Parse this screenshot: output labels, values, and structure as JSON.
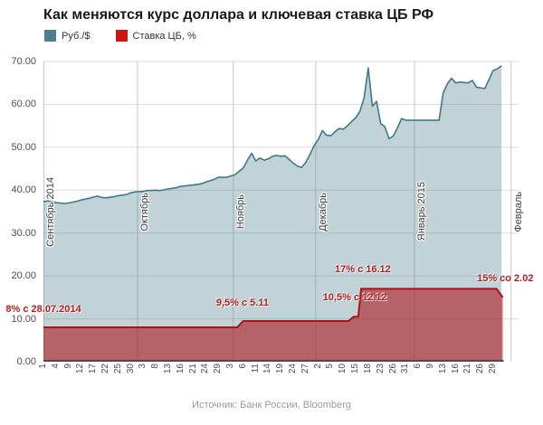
{
  "title": "Как меняются курс доллара и ключевая ставка ЦБ РФ",
  "legend": [
    {
      "label": "Руб./$",
      "color": "#4e7f8c"
    },
    {
      "label": "Ставка ЦБ, %",
      "color": "#cf1414"
    }
  ],
  "source": "Источник: Банк России, Bloomberg",
  "chart_data": {
    "type": "area",
    "title": "Как меняются курс доллара и ключевая ставка ЦБ РФ",
    "ylim": [
      0,
      70
    ],
    "grid": true,
    "legend_position": "top-left",
    "y_ticks": [
      "0.00",
      "10.00",
      "20.00",
      "30.00",
      "40.00",
      "50.00",
      "60.00",
      "70.00"
    ],
    "day_span": 114.1,
    "x_tick_days": [
      0,
      3,
      6,
      9,
      12,
      15,
      18,
      21,
      24,
      27,
      30,
      33,
      36,
      39,
      42,
      45,
      48,
      51,
      54,
      57,
      60,
      63,
      66,
      69,
      72,
      75,
      78,
      81,
      84,
      87,
      90,
      93,
      96,
      99,
      102,
      105,
      108
    ],
    "x_tick_labels": [
      "1",
      "4",
      "9",
      "12",
      "17",
      "22",
      "25",
      "30",
      "3",
      "8",
      "13",
      "16",
      "21",
      "24",
      "29",
      "3",
      "6",
      "11",
      "14",
      "19",
      "24",
      "27",
      "2",
      "5",
      "10",
      "15",
      "18",
      "23",
      "26",
      "31",
      "6",
      "9",
      "13",
      "16",
      "21",
      "26",
      "29"
    ],
    "months": [
      {
        "label": "Сентябрь 2014",
        "day": 0
      },
      {
        "label": "Октябрь",
        "day": 22.6
      },
      {
        "label": "Ноябрь",
        "day": 45.6
      },
      {
        "label": "Декабрь",
        "day": 65.4
      },
      {
        "label": "Январь 2015",
        "day": 89.1
      },
      {
        "label": "Февраль",
        "day": 112.3
      }
    ],
    "series": [
      {
        "id": "usd-rub",
        "name": "Руб./$",
        "line_color": "#41798a",
        "fill": "rgba(77,127,140,0.34)",
        "line_width": 1.6,
        "points": [
          [
            0,
            37.3
          ],
          [
            1,
            37.5
          ],
          [
            3,
            37.1
          ],
          [
            5,
            36.9
          ],
          [
            6,
            37.0
          ],
          [
            8,
            37.4
          ],
          [
            9,
            37.7
          ],
          [
            11,
            38.1
          ],
          [
            12,
            38.4
          ],
          [
            13,
            38.6
          ],
          [
            14,
            38.3
          ],
          [
            15,
            38.2
          ],
          [
            17,
            38.5
          ],
          [
            18,
            38.7
          ],
          [
            20,
            39.0
          ],
          [
            21,
            39.4
          ],
          [
            22,
            39.6
          ],
          [
            24,
            39.7
          ],
          [
            25,
            39.9
          ],
          [
            27,
            40.0
          ],
          [
            28,
            39.9
          ],
          [
            30,
            40.3
          ],
          [
            32,
            40.6
          ],
          [
            33,
            40.9
          ],
          [
            34,
            41.0
          ],
          [
            36,
            41.2
          ],
          [
            38,
            41.5
          ],
          [
            39,
            41.9
          ],
          [
            41,
            42.5
          ],
          [
            42,
            43.0
          ],
          [
            44,
            43.0
          ],
          [
            46,
            43.6
          ],
          [
            48,
            45.2
          ],
          [
            49,
            47.0
          ],
          [
            50,
            48.6
          ],
          [
            51,
            46.8
          ],
          [
            52,
            47.5
          ],
          [
            53,
            47.0
          ],
          [
            54,
            47.3
          ],
          [
            55,
            47.9
          ],
          [
            56,
            48.1
          ],
          [
            57,
            47.9
          ],
          [
            58,
            48.0
          ],
          [
            59,
            47.2
          ],
          [
            60,
            46.3
          ],
          [
            61,
            45.6
          ],
          [
            62,
            45.3
          ],
          [
            63,
            46.5
          ],
          [
            64,
            48.3
          ],
          [
            65,
            50.4
          ],
          [
            66,
            51.8
          ],
          [
            67,
            53.9
          ],
          [
            68,
            52.8
          ],
          [
            69,
            52.7
          ],
          [
            70,
            53.6
          ],
          [
            71,
            54.4
          ],
          [
            72,
            54.2
          ],
          [
            73,
            55.0
          ],
          [
            74,
            56.0
          ],
          [
            75,
            56.9
          ],
          [
            76,
            58.4
          ],
          [
            77,
            61.5
          ],
          [
            78,
            68.5
          ],
          [
            79,
            59.6
          ],
          [
            80,
            60.7
          ],
          [
            81,
            55.5
          ],
          [
            82,
            54.8
          ],
          [
            83,
            52.0
          ],
          [
            84,
            52.6
          ],
          [
            85,
            54.5
          ],
          [
            86,
            56.7
          ],
          [
            87,
            56.3
          ],
          [
            90,
            56.3
          ],
          [
            95,
            56.3
          ],
          [
            96,
            62.7
          ],
          [
            97,
            64.8
          ],
          [
            98,
            66.1
          ],
          [
            99,
            65.0
          ],
          [
            100,
            65.2
          ],
          [
            102,
            65.0
          ],
          [
            103,
            65.6
          ],
          [
            104,
            64.0
          ],
          [
            106,
            63.7
          ],
          [
            107,
            65.8
          ],
          [
            108,
            67.9
          ],
          [
            109,
            68.3
          ],
          [
            110,
            69.0
          ]
        ]
      },
      {
        "id": "cb-rate",
        "name": "Ставка ЦБ, %",
        "line_color": "#ad1218",
        "fill": "rgba(173,18,24,0.58)",
        "line_width": 2,
        "points": [
          [
            0,
            8
          ],
          [
            46.5,
            8
          ],
          [
            48,
            9.5
          ],
          [
            73.3,
            9.5
          ],
          [
            74.5,
            10.5
          ],
          [
            75.6,
            10.5
          ],
          [
            76.3,
            17
          ],
          [
            108.8,
            17
          ],
          [
            110.3,
            15
          ]
        ]
      }
    ],
    "annotations": [
      {
        "text": "8% с 28.07.2014",
        "day": 0,
        "value": 12.3
      },
      {
        "text": "9,5% с 5.11",
        "day": 47.8,
        "value": 13.7
      },
      {
        "text": "10,5% с 12.12",
        "day": 74.8,
        "value": 14.9
      },
      {
        "text": "17% с 16.12",
        "day": 76.7,
        "value": 21.6
      },
      {
        "text": "15% со 2.02",
        "day": 110.9,
        "value": 19.3
      }
    ]
  }
}
